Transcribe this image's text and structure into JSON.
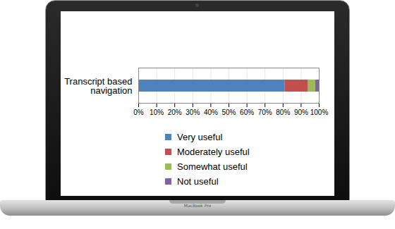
{
  "chart_data": {
    "type": "bar",
    "orientation": "horizontal",
    "stacked": true,
    "categories": [
      "Transcript based navigation"
    ],
    "series": [
      {
        "name": "Very useful",
        "color": "#4f81bd",
        "values": [
          81
        ]
      },
      {
        "name": "Moderately useful",
        "color": "#c0504d",
        "values": [
          13
        ]
      },
      {
        "name": "Somewhat useful",
        "color": "#9bbb59",
        "values": [
          4
        ]
      },
      {
        "name": "Not useful",
        "color": "#8064a2",
        "values": [
          2
        ]
      }
    ],
    "xlim": [
      0,
      100
    ],
    "xticks": [
      {
        "value": 0,
        "label": "0%"
      },
      {
        "value": 10,
        "label": "10%"
      },
      {
        "value": 20,
        "label": "20%"
      },
      {
        "value": 30,
        "label": "30%"
      },
      {
        "value": 40,
        "label": "40%"
      },
      {
        "value": 50,
        "label": "50%"
      },
      {
        "value": 60,
        "label": "60%"
      },
      {
        "value": 70,
        "label": "70%"
      },
      {
        "value": 80,
        "label": "80%"
      },
      {
        "value": 90,
        "label": "90%"
      },
      {
        "value": 100,
        "label": "100%"
      }
    ],
    "grid": true,
    "legend": "bottom"
  },
  "device_label": "MacBook Pro"
}
